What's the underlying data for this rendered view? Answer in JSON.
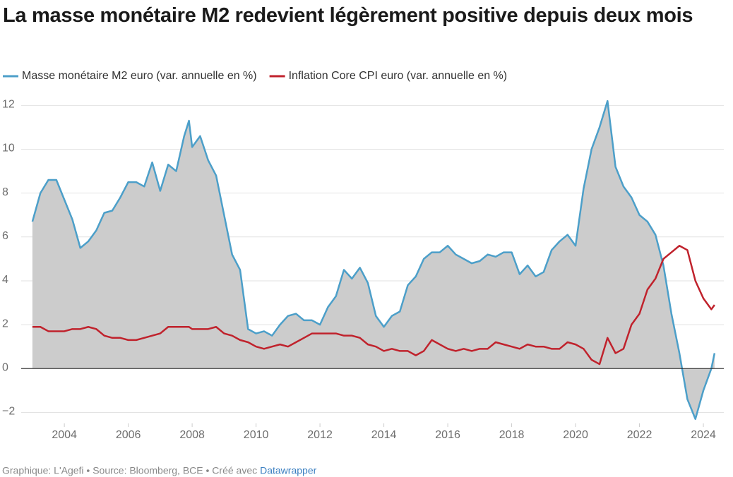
{
  "chart_data": {
    "type": "line",
    "title": "La masse monétaire M2 redevient légèrement positive depuis deux mois",
    "source": "Graphique: L'Agefi • Source: Bloomberg, BCE • Créé avec",
    "credit": "Datawrapper",
    "x": [
      2003,
      2003.25,
      2003.5,
      2003.75,
      2004,
      2004.25,
      2004.5,
      2004.75,
      2005,
      2005.25,
      2005.5,
      2005.75,
      2006,
      2006.25,
      2006.5,
      2006.75,
      2007,
      2007.25,
      2007.5,
      2007.75,
      2007.9,
      2008,
      2008.25,
      2008.5,
      2008.75,
      2009,
      2009.25,
      2009.5,
      2009.75,
      2010,
      2010.25,
      2010.5,
      2010.75,
      2011,
      2011.25,
      2011.5,
      2011.75,
      2012,
      2012.25,
      2012.5,
      2012.75,
      2013,
      2013.25,
      2013.5,
      2013.75,
      2014,
      2014.25,
      2014.5,
      2014.75,
      2015,
      2015.25,
      2015.5,
      2015.75,
      2016,
      2016.25,
      2016.5,
      2016.75,
      2017,
      2017.25,
      2017.5,
      2017.75,
      2018,
      2018.25,
      2018.5,
      2018.75,
      2019,
      2019.25,
      2019.5,
      2019.75,
      2020,
      2020.25,
      2020.5,
      2020.75,
      2021,
      2021.25,
      2021.5,
      2021.75,
      2022,
      2022.25,
      2022.5,
      2022.75,
      2023,
      2023.25,
      2023.5,
      2023.75,
      2024,
      2024.25,
      2024.35
    ],
    "series": [
      {
        "name": "Masse monétaire M2 euro (var. annuelle en %)",
        "color": "#4c9fc9",
        "area": true,
        "values": [
          6.7,
          8.0,
          8.6,
          8.6,
          7.7,
          6.8,
          5.5,
          5.8,
          6.3,
          7.1,
          7.2,
          7.8,
          8.5,
          8.5,
          8.3,
          9.4,
          8.1,
          9.3,
          9.0,
          10.6,
          11.3,
          10.1,
          10.6,
          9.5,
          8.8,
          7.0,
          5.2,
          4.5,
          1.8,
          1.6,
          1.7,
          1.5,
          2.0,
          2.4,
          2.5,
          2.2,
          2.2,
          2.0,
          2.8,
          3.3,
          4.5,
          4.1,
          4.6,
          3.9,
          2.4,
          1.9,
          2.4,
          2.6,
          3.8,
          4.2,
          5.0,
          5.3,
          5.3,
          5.6,
          5.2,
          5.0,
          4.8,
          4.9,
          5.2,
          5.1,
          5.3,
          5.3,
          4.3,
          4.7,
          4.2,
          4.4,
          5.4,
          5.8,
          6.1,
          5.6,
          8.2,
          10.0,
          11.0,
          12.2,
          9.2,
          8.3,
          7.8,
          7.0,
          6.7,
          6.1,
          4.7,
          2.5,
          0.7,
          -1.4,
          -2.3,
          -1.0,
          0.0,
          0.7
        ]
      },
      {
        "name": "Inflation Core CPI euro (var. annuelle en %)",
        "color": "#c0222c",
        "values": [
          1.9,
          1.9,
          1.7,
          1.7,
          1.7,
          1.8,
          1.8,
          1.9,
          1.8,
          1.5,
          1.4,
          1.4,
          1.3,
          1.3,
          1.4,
          1.5,
          1.6,
          1.9,
          1.9,
          1.9,
          1.9,
          1.8,
          1.8,
          1.8,
          1.9,
          1.6,
          1.5,
          1.3,
          1.2,
          1.0,
          0.9,
          1.0,
          1.1,
          1.0,
          1.2,
          1.4,
          1.6,
          1.6,
          1.6,
          1.6,
          1.5,
          1.5,
          1.4,
          1.1,
          1.0,
          0.8,
          0.9,
          0.8,
          0.8,
          0.6,
          0.8,
          1.3,
          1.1,
          0.9,
          0.8,
          0.9,
          0.8,
          0.9,
          0.9,
          1.2,
          1.1,
          1.0,
          0.9,
          1.1,
          1.0,
          1.0,
          0.9,
          0.9,
          1.2,
          1.1,
          0.9,
          0.4,
          0.2,
          1.4,
          0.7,
          0.9,
          2.0,
          2.5,
          3.6,
          4.1,
          5.0,
          5.3,
          5.6,
          5.4,
          4.0,
          3.2,
          2.7,
          2.9
        ]
      }
    ],
    "xlim": [
      2002.87,
      2024.64
    ],
    "xticks": [
      2004,
      2006,
      2008,
      2010,
      2012,
      2014,
      2016,
      2018,
      2020,
      2022,
      2024
    ],
    "ylim": [
      -2.5,
      12.3
    ],
    "yticks": [
      {
        "value": -2,
        "label": "−2"
      },
      0,
      2,
      4,
      6,
      8,
      10,
      12
    ],
    "grid": true
  }
}
